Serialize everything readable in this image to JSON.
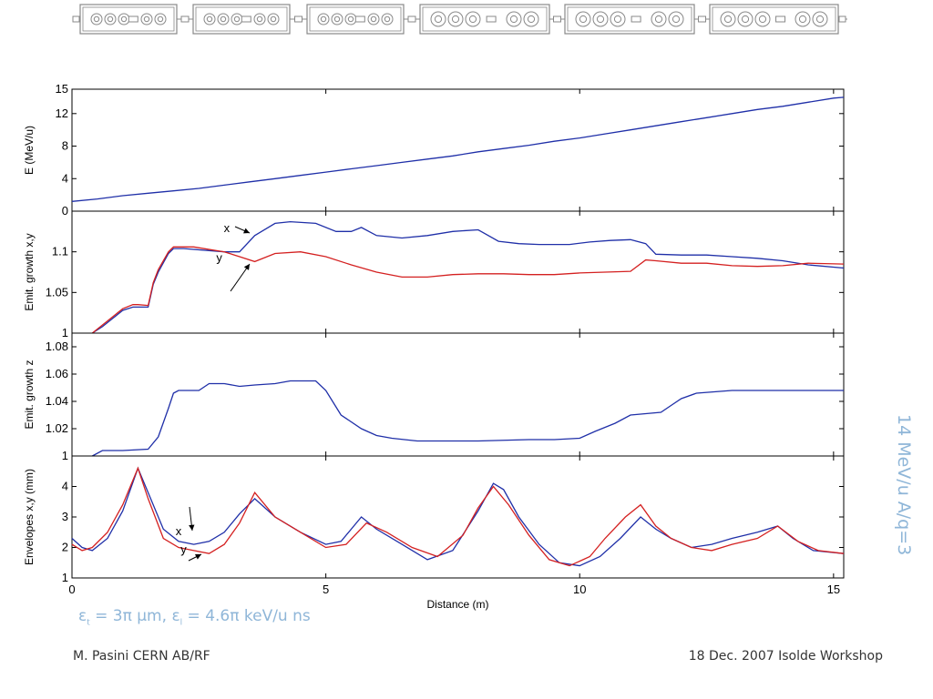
{
  "side_label": "14 MeV/u A/q=3",
  "emittance_formula": {
    "eps": "ε",
    "sub_t": "t",
    "t_value": " = 3π μm, ",
    "sub_l": "l",
    "l_value": " = 4.6π keV/u ns"
  },
  "footer": {
    "author": "M. Pasini CERN AB/RF",
    "event": "18 Dec. 2007 Isolde Workshop"
  },
  "colors": {
    "blue": "#1f2fa8",
    "red": "#d42020",
    "lattice": "#888888",
    "accent": "#8fb6d8"
  },
  "lattice_icon": "accelerator-lattice-icon",
  "chart_data": [
    {
      "type": "line",
      "id": "energy",
      "title": "",
      "ylabel": "E (MeV/u)",
      "xlim": [
        0,
        15.2
      ],
      "ylim": [
        0,
        15
      ],
      "yticks": [
        0,
        4,
        8,
        12,
        15
      ],
      "series": [
        {
          "color": "#1f2fa8",
          "x": [
            0,
            0.5,
            1,
            1.5,
            2,
            2.5,
            3,
            3.5,
            4,
            4.5,
            5,
            5.5,
            6,
            6.5,
            7,
            7.5,
            8,
            8.5,
            9,
            9.5,
            10,
            10.5,
            11,
            11.5,
            12,
            12.5,
            13,
            13.5,
            14,
            14.5,
            15,
            15.2
          ],
          "y": [
            1.2,
            1.5,
            1.9,
            2.2,
            2.5,
            2.8,
            3.2,
            3.6,
            4.0,
            4.4,
            4.8,
            5.2,
            5.6,
            6.0,
            6.4,
            6.8,
            7.3,
            7.7,
            8.1,
            8.6,
            9.0,
            9.5,
            10.0,
            10.5,
            11.0,
            11.5,
            12.0,
            12.5,
            12.9,
            13.4,
            13.9,
            14.0
          ]
        }
      ]
    },
    {
      "type": "line",
      "id": "emit_xy",
      "title": "",
      "ylabel": "Emit. growth x,y",
      "xlim": [
        0,
        15.2
      ],
      "ylim": [
        1,
        1.15
      ],
      "yticks": [
        1,
        1.05,
        1.1
      ],
      "annotations": [
        {
          "text": "x",
          "x": 3.35,
          "y": 1.124
        },
        {
          "text": "y",
          "x": 3.2,
          "y": 1.088
        }
      ],
      "series": [
        {
          "name": "x",
          "color": "#1f2fa8",
          "x": [
            0.4,
            0.6,
            0.8,
            1.0,
            1.2,
            1.3,
            1.5,
            1.6,
            1.7,
            1.9,
            2.0,
            2.2,
            3.0,
            3.3,
            3.6,
            4.0,
            4.3,
            4.8,
            5.2,
            5.5,
            5.7,
            6.0,
            6.5,
            7.0,
            7.5,
            8.0,
            8.4,
            8.8,
            9.2,
            9.8,
            10.2,
            10.6,
            11.0,
            11.3,
            11.5,
            12.0,
            12.5,
            13.0,
            13.5,
            14.0,
            14.5,
            15.2
          ],
          "y": [
            1.0,
            1.008,
            1.018,
            1.028,
            1.032,
            1.032,
            1.032,
            1.06,
            1.075,
            1.098,
            1.104,
            1.104,
            1.1,
            1.1,
            1.12,
            1.135,
            1.137,
            1.135,
            1.125,
            1.125,
            1.13,
            1.12,
            1.117,
            1.12,
            1.125,
            1.127,
            1.113,
            1.11,
            1.109,
            1.109,
            1.112,
            1.114,
            1.115,
            1.11,
            1.097,
            1.096,
            1.096,
            1.094,
            1.092,
            1.089,
            1.084,
            1.08
          ]
        },
        {
          "name": "y",
          "color": "#d42020",
          "x": [
            0.4,
            0.6,
            0.8,
            1.0,
            1.2,
            1.3,
            1.5,
            1.6,
            1.7,
            1.9,
            2.0,
            2.4,
            3.0,
            3.3,
            3.6,
            4.0,
            4.5,
            5.0,
            5.5,
            6.0,
            6.5,
            7.0,
            7.5,
            8.0,
            8.5,
            9.0,
            9.5,
            10.0,
            10.5,
            11.0,
            11.3,
            11.5,
            12.0,
            12.5,
            13.0,
            13.5,
            14.0,
            14.5,
            15.2
          ],
          "y": [
            1.0,
            1.01,
            1.02,
            1.03,
            1.035,
            1.035,
            1.034,
            1.062,
            1.078,
            1.1,
            1.106,
            1.106,
            1.1,
            1.094,
            1.088,
            1.098,
            1.1,
            1.094,
            1.084,
            1.075,
            1.069,
            1.069,
            1.072,
            1.073,
            1.073,
            1.072,
            1.072,
            1.074,
            1.075,
            1.076,
            1.09,
            1.089,
            1.086,
            1.086,
            1.083,
            1.082,
            1.083,
            1.086,
            1.085
          ]
        }
      ]
    },
    {
      "type": "line",
      "id": "emit_z",
      "title": "",
      "ylabel": "Emit. growth z",
      "xlim": [
        0,
        15.2
      ],
      "ylim": [
        1,
        1.09
      ],
      "yticks": [
        1,
        1.02,
        1.04,
        1.06,
        1.08
      ],
      "series": [
        {
          "color": "#1f2fa8",
          "x": [
            0.4,
            0.6,
            1.0,
            1.5,
            1.7,
            1.9,
            2.0,
            2.1,
            2.5,
            2.7,
            3.0,
            3.3,
            3.6,
            4.0,
            4.3,
            4.8,
            5.0,
            5.3,
            5.7,
            6.0,
            6.3,
            6.8,
            7.5,
            8.0,
            9.0,
            9.5,
            10.0,
            10.3,
            10.7,
            11.0,
            11.3,
            11.6,
            11.8,
            12.0,
            12.3,
            13.0,
            14.0,
            15.2
          ],
          "y": [
            1.0,
            1.004,
            1.004,
            1.005,
            1.014,
            1.035,
            1.046,
            1.048,
            1.048,
            1.053,
            1.053,
            1.051,
            1.052,
            1.053,
            1.055,
            1.055,
            1.048,
            1.03,
            1.02,
            1.015,
            1.013,
            1.011,
            1.011,
            1.011,
            1.012,
            1.012,
            1.013,
            1.018,
            1.024,
            1.03,
            1.031,
            1.032,
            1.037,
            1.042,
            1.046,
            1.048,
            1.048,
            1.048
          ]
        }
      ]
    },
    {
      "type": "line",
      "id": "envelopes",
      "title": "",
      "ylabel": "Envelopes x,y (mm)",
      "xlabel": "Distance (m)",
      "xlim": [
        0,
        15.2
      ],
      "ylim": [
        1,
        5
      ],
      "yticks": [
        1,
        2,
        3,
        4
      ],
      "xticks": [
        0,
        5,
        10,
        15
      ],
      "annotations": [
        {
          "text": "x",
          "x": 2.4,
          "y": 2.4
        },
        {
          "text": "y",
          "x": 2.5,
          "y": 1.8
        }
      ],
      "series": [
        {
          "name": "x",
          "color": "#1f2fa8",
          "x": [
            0,
            0.2,
            0.4,
            0.7,
            1.0,
            1.3,
            1.5,
            1.8,
            2.1,
            2.4,
            2.7,
            3.0,
            3.3,
            3.6,
            4.0,
            4.5,
            5.0,
            5.3,
            5.7,
            6.0,
            6.5,
            7.0,
            7.5,
            8.0,
            8.3,
            8.5,
            8.8,
            9.2,
            9.6,
            10.0,
            10.4,
            10.8,
            11.2,
            11.5,
            11.8,
            12.2,
            12.6,
            13.0,
            13.5,
            13.9,
            14.2,
            14.6,
            15.2
          ],
          "y": [
            2.3,
            2.0,
            1.9,
            2.3,
            3.2,
            4.6,
            3.8,
            2.6,
            2.2,
            2.1,
            2.2,
            2.5,
            3.1,
            3.6,
            3.0,
            2.5,
            2.1,
            2.2,
            3.0,
            2.6,
            2.1,
            1.6,
            1.9,
            3.2,
            4.1,
            3.9,
            3.0,
            2.1,
            1.5,
            1.4,
            1.7,
            2.3,
            3.0,
            2.6,
            2.3,
            2.0,
            2.1,
            2.3,
            2.5,
            2.7,
            2.3,
            1.9,
            1.8
          ]
        },
        {
          "name": "y",
          "color": "#d42020",
          "x": [
            0,
            0.2,
            0.4,
            0.7,
            1.0,
            1.3,
            1.5,
            1.8,
            2.1,
            2.4,
            2.7,
            3.0,
            3.3,
            3.6,
            4.0,
            4.5,
            5.0,
            5.4,
            5.8,
            6.2,
            6.7,
            7.2,
            7.7,
            8.0,
            8.3,
            8.6,
            9.0,
            9.4,
            9.8,
            10.2,
            10.5,
            10.9,
            11.2,
            11.5,
            11.8,
            12.2,
            12.6,
            13.0,
            13.5,
            13.9,
            14.3,
            14.7,
            15.2
          ],
          "y": [
            2.1,
            1.9,
            2.0,
            2.5,
            3.4,
            4.6,
            3.6,
            2.3,
            2.0,
            1.9,
            1.8,
            2.1,
            2.8,
            3.8,
            3.0,
            2.5,
            2.0,
            2.1,
            2.8,
            2.5,
            2.0,
            1.7,
            2.4,
            3.3,
            4.0,
            3.4,
            2.4,
            1.6,
            1.4,
            1.7,
            2.3,
            3.0,
            3.4,
            2.7,
            2.3,
            2.0,
            1.9,
            2.1,
            2.3,
            2.7,
            2.2,
            1.9,
            1.8
          ]
        }
      ]
    }
  ]
}
